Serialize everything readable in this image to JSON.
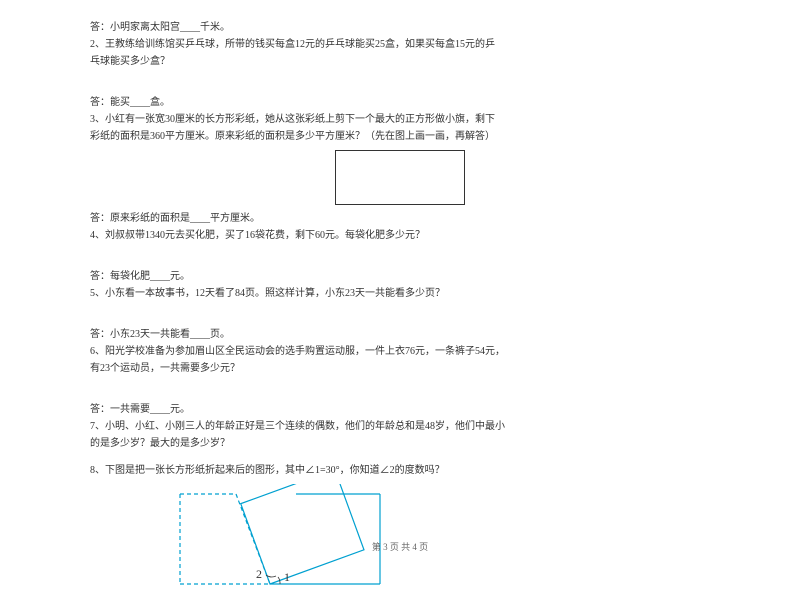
{
  "q1_ans": "答：小明家离太阳宫____千米。",
  "q2_a": "2、王教练给训练馆买乒乓球，所带的钱买每盒12元的乒乓球能买25盒，如果买每盒15元的乒",
  "q2_b": "乓球能买多少盒？",
  "q2_ans": "答：能买____盒。",
  "q3_a": "3、小红有一张宽30厘米的长方形彩纸，她从这张彩纸上剪下一个最大的正方形做小旗，剩下",
  "q3_b": "彩纸的面积是360平方厘米。原来彩纸的面积是多少平方厘米？（先在图上画一画，再解答）",
  "q3_rect": {
    "width": 130,
    "height": 55,
    "border_color": "#333333"
  },
  "q3_ans": "答：原来彩纸的面积是____平方厘米。",
  "q4": "4、刘叔叔带1340元去买化肥，买了16袋花费，剩下60元。每袋化肥多少元？",
  "q4_ans": "答：每袋化肥____元。",
  "q5": "5、小东看一本故事书，12天看了84页。照这样计算，小东23天一共能看多少页？",
  "q5_ans": "答：小东23天一共能看____页。",
  "q6_a": "6、阳光学校准备为参加眉山区全民运动会的选手购置运动服，一件上衣76元，一条裤子54元，",
  "q6_b": "有23个运动员，一共需要多少元？",
  "q6_ans": "答：一共需要____元。",
  "q7_a": "7、小明、小红、小刚三人的年龄正好是三个连续的偶数，他们的年龄总和是48岁，他们中最小",
  "q7_b": "的是多少岁？最大的是多少岁？",
  "q8": "8、下图是把一张长方形纸折起来后的图形，其中∠1=30°，你知道∠2的度数吗？",
  "fold": {
    "outer_w": 200,
    "outer_h": 90,
    "dashed_color": "#00a0d0",
    "solid_color": "#00a0d0",
    "label1": "1",
    "label2": "2",
    "label_color": "#333333",
    "label_fontsize": 12
  },
  "footer": "第 3 页  共 4 页"
}
